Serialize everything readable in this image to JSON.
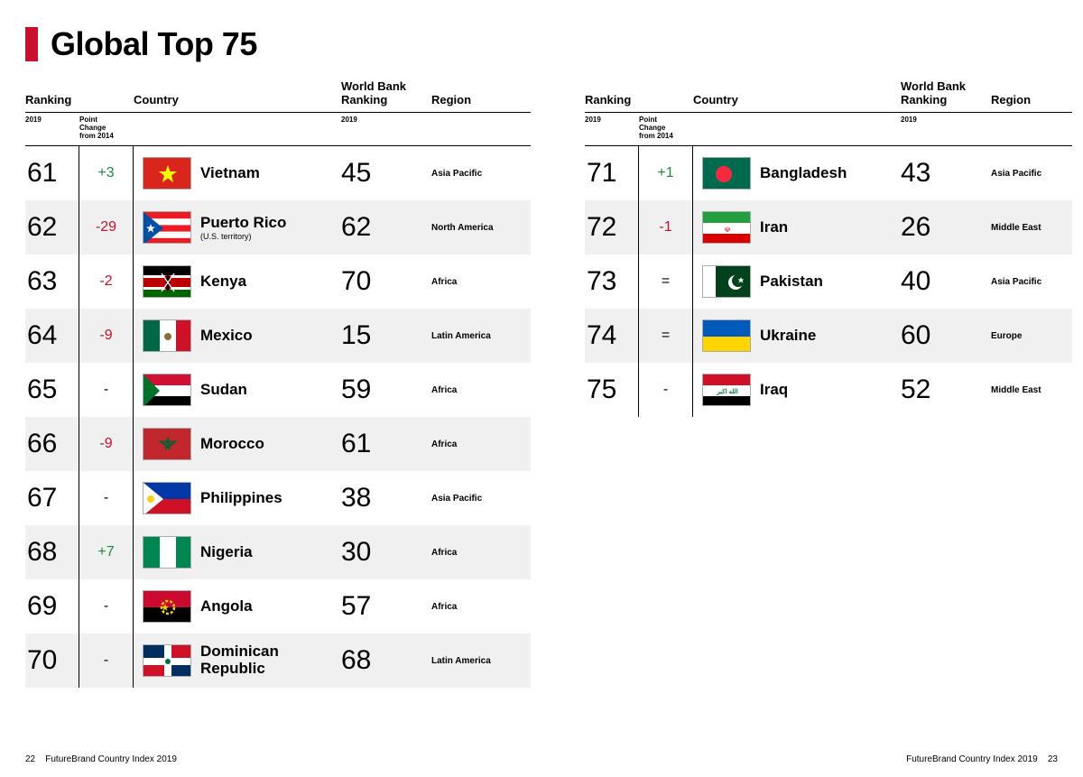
{
  "title": "Global Top 75",
  "title_bar_color": "#c8102e",
  "headers": {
    "ranking": "Ranking",
    "country": "Country",
    "wbr": "World Bank Ranking",
    "region": "Region",
    "sub_year": "2019",
    "sub_change": "Point\nChange\nfrom 2014",
    "sub_wbr": "2019"
  },
  "change_colors": {
    "pos": "#1a8a3a",
    "neg": "#c8102e",
    "neutral": "#000000"
  },
  "left_rows": [
    {
      "rank": "61",
      "change": "+3",
      "change_type": "pos",
      "country": "Vietnam",
      "sub": "",
      "wbr": "45",
      "region": "Asia Pacific",
      "flag": "vn"
    },
    {
      "rank": "62",
      "change": "-29",
      "change_type": "neg",
      "country": "Puerto Rico",
      "sub": "(U.S. territory)",
      "wbr": "62",
      "region": "North America",
      "flag": "pr"
    },
    {
      "rank": "63",
      "change": "-2",
      "change_type": "neg",
      "country": "Kenya",
      "sub": "",
      "wbr": "70",
      "region": "Africa",
      "flag": "ke"
    },
    {
      "rank": "64",
      "change": "-9",
      "change_type": "neg",
      "country": "Mexico",
      "sub": "",
      "wbr": "15",
      "region": "Latin America",
      "flag": "mx"
    },
    {
      "rank": "65",
      "change": "-",
      "change_type": "dash",
      "country": "Sudan",
      "sub": "",
      "wbr": "59",
      "region": "Africa",
      "flag": "sd"
    },
    {
      "rank": "66",
      "change": "-9",
      "change_type": "neg",
      "country": "Morocco",
      "sub": "",
      "wbr": "61",
      "region": "Africa",
      "flag": "ma"
    },
    {
      "rank": "67",
      "change": "-",
      "change_type": "dash",
      "country": "Philippines",
      "sub": "",
      "wbr": "38",
      "region": "Asia Pacific",
      "flag": "ph"
    },
    {
      "rank": "68",
      "change": "+7",
      "change_type": "pos",
      "country": "Nigeria",
      "sub": "",
      "wbr": "30",
      "region": "Africa",
      "flag": "ng"
    },
    {
      "rank": "69",
      "change": "-",
      "change_type": "dash",
      "country": "Angola",
      "sub": "",
      "wbr": "57",
      "region": "Africa",
      "flag": "ao"
    },
    {
      "rank": "70",
      "change": "-",
      "change_type": "dash",
      "country": "Dominican Republic",
      "sub": "",
      "wbr": "68",
      "region": "Latin America",
      "flag": "do"
    }
  ],
  "right_rows": [
    {
      "rank": "71",
      "change": "+1",
      "change_type": "pos",
      "country": "Bangladesh",
      "sub": "",
      "wbr": "43",
      "region": "Asia Pacific",
      "flag": "bd"
    },
    {
      "rank": "72",
      "change": "-1",
      "change_type": "neg",
      "country": "Iran",
      "sub": "",
      "wbr": "26",
      "region": "Middle East",
      "flag": "ir"
    },
    {
      "rank": "73",
      "change": "=",
      "change_type": "eq",
      "country": "Pakistan",
      "sub": "",
      "wbr": "40",
      "region": "Asia Pacific",
      "flag": "pk"
    },
    {
      "rank": "74",
      "change": "=",
      "change_type": "eq",
      "country": "Ukraine",
      "sub": "",
      "wbr": "60",
      "region": "Europe",
      "flag": "ua"
    },
    {
      "rank": "75",
      "change": "-",
      "change_type": "dash",
      "country": "Iraq",
      "sub": "",
      "wbr": "52",
      "region": "Middle East",
      "flag": "iq"
    }
  ],
  "footer": {
    "left_page": "22",
    "right_page": "23",
    "source": "FutureBrand Country Index 2019"
  }
}
